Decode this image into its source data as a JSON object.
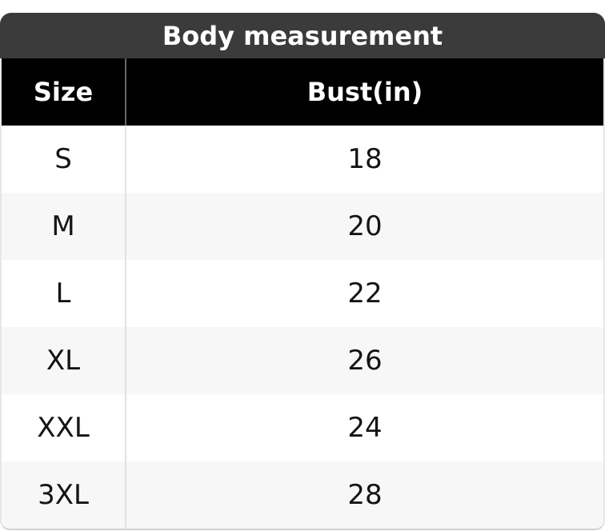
{
  "chart_data": {
    "type": "table",
    "title": "Body measurement",
    "columns": [
      "Size",
      "Bust(in)"
    ],
    "rows": [
      [
        "S",
        "18"
      ],
      [
        "M",
        "20"
      ],
      [
        "L",
        "22"
      ],
      [
        "XL",
        "26"
      ],
      [
        "XXL",
        "24"
      ],
      [
        "3XL",
        "28"
      ]
    ],
    "layout_hints": {
      "title_position": "top-center",
      "header_row": true,
      "alternating_rows": true
    }
  },
  "colors": {
    "title_bar_bg": "#3b3b3b",
    "title_text": "#ffffff",
    "header_bg": "#000000",
    "header_text": "#ffffff",
    "row_bg": "#ffffff",
    "row_alt_bg": "#f7f7f7",
    "body_text": "#141414",
    "divider_header": "#666666",
    "divider_body": "#e2e2e2",
    "outer_border": "#e7e7e7",
    "outer_border_bottom": "#d2d2d2"
  }
}
